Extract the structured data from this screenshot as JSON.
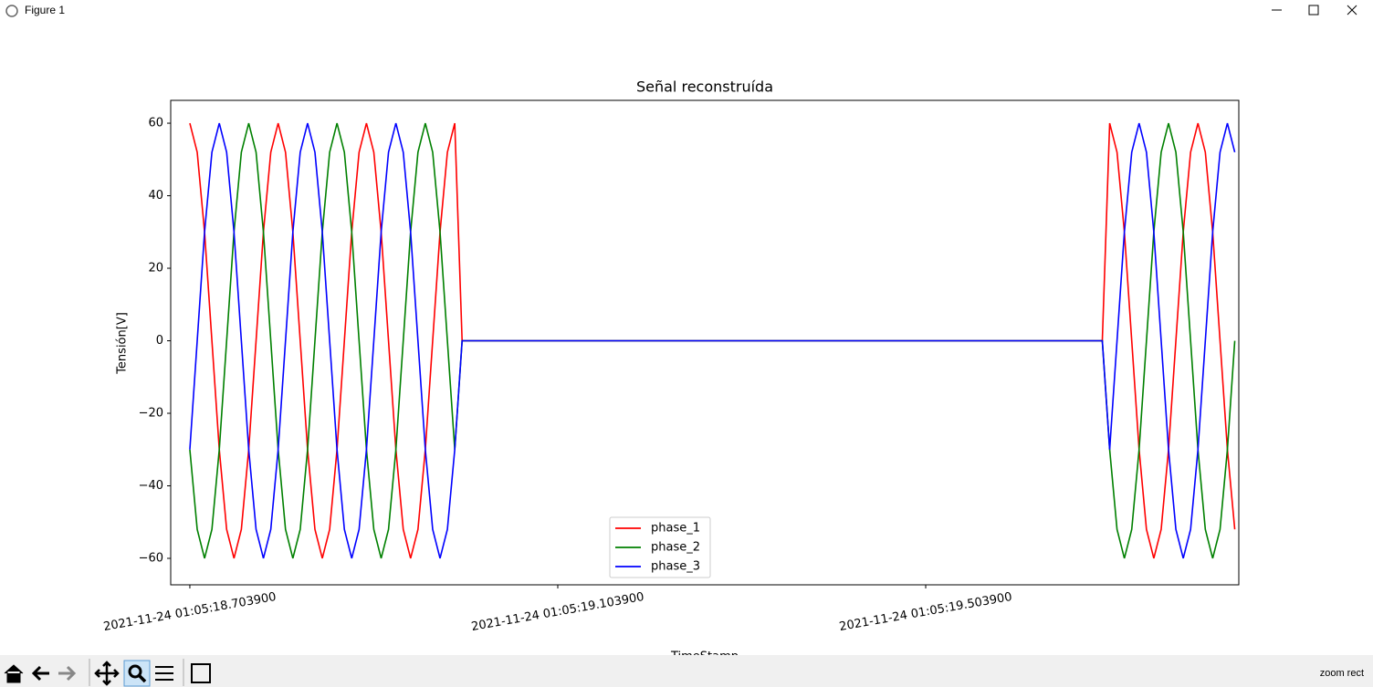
{
  "window": {
    "title": "Figure 1",
    "status": "zoom rect"
  },
  "chart_data": {
    "type": "line",
    "title": "Señal reconstruída",
    "xlabel": "TimeStamp",
    "ylabel": "Tensión[V]",
    "x": [
      "2021-11-24 01:05:18.703900",
      "2021-11-24 01:05:18.711900",
      "2021-11-24 01:05:18.719900",
      "2021-11-24 01:05:18.727900",
      "2021-11-24 01:05:18.735900",
      "2021-11-24 01:05:18.743900",
      "2021-11-24 01:05:18.751900",
      "2021-11-24 01:05:18.759900",
      "2021-11-24 01:05:18.767900",
      "2021-11-24 01:05:18.775900",
      "2021-11-24 01:05:18.783900",
      "2021-11-24 01:05:18.791900",
      "2021-11-24 01:05:18.799900",
      "2021-11-24 01:05:18.807900",
      "2021-11-24 01:05:18.815900",
      "2021-11-24 01:05:18.823900",
      "2021-11-24 01:05:18.831900",
      "2021-11-24 01:05:18.839900",
      "2021-11-24 01:05:18.847900",
      "2021-11-24 01:05:18.855900",
      "2021-11-24 01:05:18.863900",
      "2021-11-24 01:05:18.871900",
      "2021-11-24 01:05:18.879900",
      "2021-11-24 01:05:18.887900",
      "2021-11-24 01:05:18.895900",
      "2021-11-24 01:05:18.903900",
      "2021-11-24 01:05:18.911900",
      "2021-11-24 01:05:18.919900",
      "2021-11-24 01:05:18.927900",
      "2021-11-24 01:05:18.935900",
      "2021-11-24 01:05:18.943900",
      "2021-11-24 01:05:18.951900",
      "2021-11-24 01:05:18.959900",
      "2021-11-24 01:05:18.967900",
      "2021-11-24 01:05:18.975900",
      "2021-11-24 01:05:18.983900",
      "2021-11-24 01:05:18.991900",
      "2021-11-24 01:05:18.999900",
      "2021-11-24 01:05:19.695900",
      "2021-11-24 01:05:19.703900",
      "2021-11-24 01:05:19.711900",
      "2021-11-24 01:05:19.719900",
      "2021-11-24 01:05:19.727900",
      "2021-11-24 01:05:19.735900",
      "2021-11-24 01:05:19.743900",
      "2021-11-24 01:05:19.751900",
      "2021-11-24 01:05:19.759900",
      "2021-11-24 01:05:19.767900",
      "2021-11-24 01:05:19.775900",
      "2021-11-24 01:05:19.783900",
      "2021-11-24 01:05:19.791900",
      "2021-11-24 01:05:19.799900",
      "2021-11-24 01:05:19.807900",
      "2021-11-24 01:05:19.815900",
      "2021-11-24 01:05:19.823900",
      "2021-11-24 01:05:19.831900",
      "2021-11-24 01:05:19.839900"
    ],
    "series": [
      {
        "name": "phase_1",
        "color": "#ff0000",
        "values": [
          60,
          52,
          30,
          0,
          -30,
          -52,
          -60,
          -52,
          -30,
          0,
          30,
          52,
          60,
          52,
          30,
          0,
          -30,
          -52,
          -60,
          -52,
          -30,
          0,
          30,
          52,
          60,
          52,
          30,
          0,
          -30,
          -52,
          -60,
          -52,
          -30,
          0,
          30,
          52,
          60,
          0,
          0,
          60,
          52,
          30,
          0,
          -30,
          -52,
          -60,
          -52,
          -30,
          0,
          30,
          52,
          60,
          52,
          30,
          0,
          -30,
          -52
        ]
      },
      {
        "name": "phase_2",
        "color": "#008000",
        "values": [
          -30,
          -52,
          -60,
          -52,
          -30,
          0,
          30,
          52,
          60,
          52,
          30,
          0,
          -30,
          -52,
          -60,
          -52,
          -30,
          0,
          30,
          52,
          60,
          52,
          30,
          0,
          -30,
          -52,
          -60,
          -52,
          -30,
          0,
          30,
          52,
          60,
          52,
          30,
          0,
          -30,
          0,
          0,
          -30,
          -52,
          -60,
          -52,
          -30,
          0,
          30,
          52,
          60,
          52,
          30,
          0,
          -30,
          -52,
          -60,
          -52,
          -30,
          0
        ]
      },
      {
        "name": "phase_3",
        "color": "#0000ff",
        "values": [
          -30,
          0,
          30,
          52,
          60,
          52,
          30,
          0,
          -30,
          -52,
          -60,
          -52,
          -30,
          0,
          30,
          52,
          60,
          52,
          30,
          0,
          -30,
          -52,
          -60,
          -52,
          -30,
          0,
          30,
          52,
          60,
          52,
          30,
          0,
          -30,
          -52,
          -60,
          -52,
          -30,
          0,
          0,
          -30,
          0,
          30,
          52,
          60,
          52,
          30,
          0,
          -30,
          -52,
          -60,
          -52,
          -30,
          0,
          30,
          52,
          60,
          52
        ]
      }
    ],
    "xlim": [
      "2021-11-24 01:05:18.683100",
      "2021-11-24 01:05:19.844300"
    ],
    "xticks": [
      "2021-11-24 01:05:18.703900",
      "2021-11-24 01:05:19.103900",
      "2021-11-24 01:05:19.503900"
    ],
    "ylim": [
      -67.3,
      66.3
    ],
    "yticks": [
      {
        "value": -60,
        "label": "−60"
      },
      {
        "value": -40,
        "label": "−40"
      },
      {
        "value": -20,
        "label": "−20"
      },
      0,
      20,
      40,
      60
    ],
    "legend": "lower center",
    "grid": false
  }
}
